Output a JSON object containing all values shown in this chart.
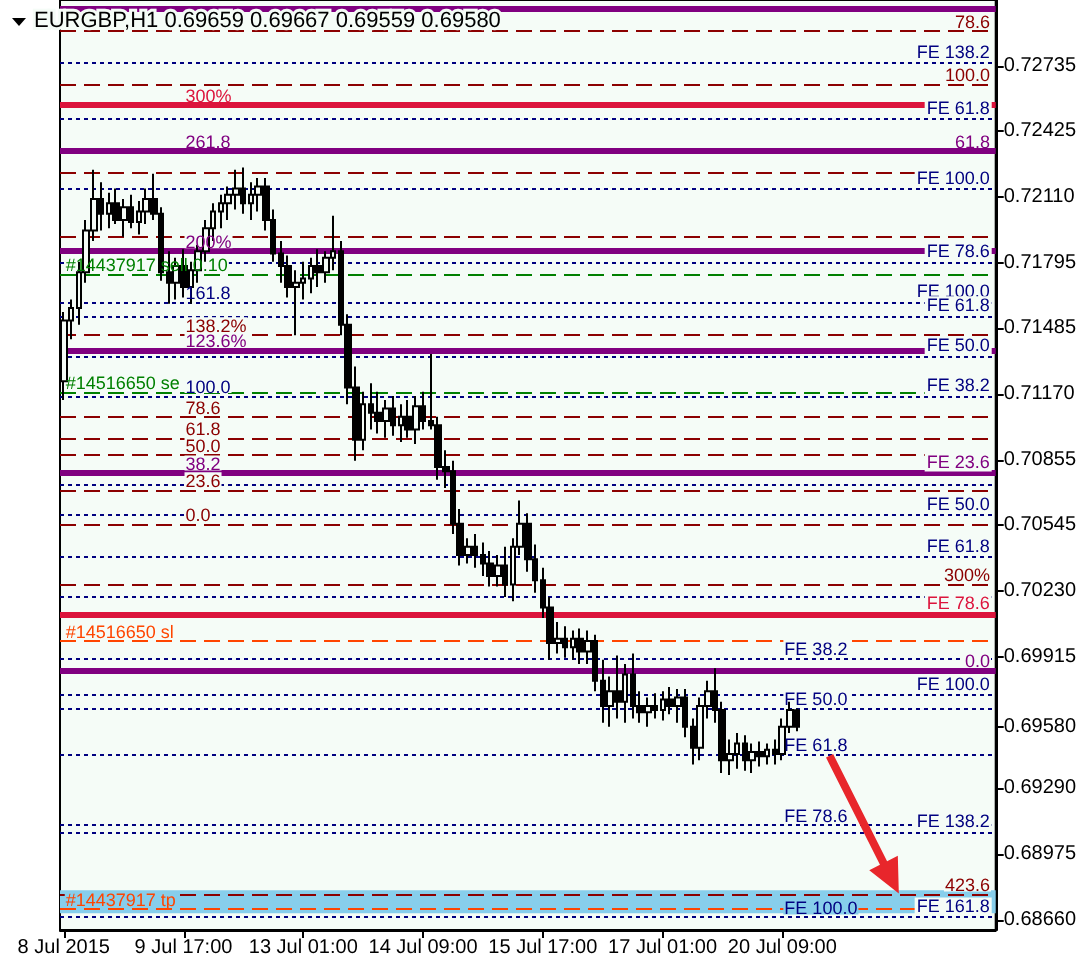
{
  "chart_data": {
    "type": "candlestick",
    "title": "EURGBP,H1 0.69659 0.69667 0.69559 0.69580",
    "color": "#000000",
    "categories": [
      "8 Jul 2015",
      null,
      null,
      null,
      null,
      null,
      null,
      null,
      null,
      null,
      null,
      null,
      null,
      null,
      null,
      null,
      "9 Jul 17:00",
      null,
      null,
      null,
      null,
      null,
      null,
      null,
      null,
      null,
      null,
      null,
      null,
      null,
      null,
      null,
      "13 Jul 01:00",
      null,
      null,
      null,
      null,
      null,
      null,
      null,
      null,
      null,
      null,
      null,
      null,
      null,
      null,
      null,
      "14 Jul 09:00",
      null,
      null,
      null,
      null,
      null,
      null,
      null,
      null,
      null,
      null,
      null,
      null,
      null,
      null,
      null,
      "15 Jul 17:00",
      null,
      null,
      null,
      null,
      null,
      null,
      null,
      null,
      null,
      null,
      null,
      null,
      null,
      null,
      null,
      "17 Jul 01:00",
      null,
      null,
      null,
      null,
      null,
      null,
      null,
      null,
      null,
      null,
      null,
      null,
      null,
      null,
      null,
      "20 Jul 09:00",
      null,
      null,
      null,
      null,
      null,
      null,
      null,
      null,
      null,
      null,
      null,
      null,
      null,
      null,
      null,
      null,
      null,
      null,
      null,
      null,
      null,
      null,
      null,
      null,
      null,
      null,
      null,
      null
    ],
    "ohlc": [
      [
        0.7123,
        0.7156,
        0.7114,
        0.7152
      ],
      [
        0.7152,
        0.7162,
        0.7143,
        0.7158
      ],
      [
        0.7158,
        0.718,
        0.715,
        0.7175
      ],
      [
        0.7175,
        0.72,
        0.717,
        0.7195
      ],
      [
        0.7195,
        0.7224,
        0.719,
        0.721
      ],
      [
        0.721,
        0.7218,
        0.7195,
        0.7203
      ],
      [
        0.7203,
        0.7213,
        0.7196,
        0.7208
      ],
      [
        0.7208,
        0.7215,
        0.7198,
        0.72
      ],
      [
        0.72,
        0.721,
        0.7192,
        0.7206
      ],
      [
        0.7206,
        0.7212,
        0.7196,
        0.7199
      ],
      [
        0.7199,
        0.7209,
        0.7193,
        0.7204
      ],
      [
        0.7204,
        0.7215,
        0.7198,
        0.721
      ],
      [
        0.721,
        0.7222,
        0.72,
        0.7203
      ],
      [
        0.7203,
        0.7206,
        0.7171,
        0.7175
      ],
      [
        0.7175,
        0.7185,
        0.716,
        0.717
      ],
      [
        0.717,
        0.7182,
        0.7162,
        0.7178
      ],
      [
        0.7178,
        0.7186,
        0.7163,
        0.7168
      ],
      [
        0.7168,
        0.718,
        0.716,
        0.7176
      ],
      [
        0.7176,
        0.7188,
        0.717,
        0.7185
      ],
      [
        0.7185,
        0.72,
        0.718,
        0.7196
      ],
      [
        0.7196,
        0.7208,
        0.719,
        0.7204
      ],
      [
        0.7204,
        0.7212,
        0.7196,
        0.7208
      ],
      [
        0.7208,
        0.7216,
        0.72,
        0.7212
      ],
      [
        0.7212,
        0.7224,
        0.7205,
        0.7215
      ],
      [
        0.7215,
        0.7225,
        0.7203,
        0.7208
      ],
      [
        0.7208,
        0.7218,
        0.72,
        0.7212
      ],
      [
        0.7212,
        0.722,
        0.7204,
        0.7216
      ],
      [
        0.7216,
        0.722,
        0.7195,
        0.72
      ],
      [
        0.72,
        0.7205,
        0.718,
        0.7184
      ],
      [
        0.7184,
        0.719,
        0.717,
        0.7178
      ],
      [
        0.7178,
        0.7183,
        0.7163,
        0.7168
      ],
      [
        0.7168,
        0.7176,
        0.7145,
        0.717
      ],
      [
        0.717,
        0.718,
        0.7162,
        0.7172
      ],
      [
        0.7172,
        0.7182,
        0.7165,
        0.7178
      ],
      [
        0.7178,
        0.7186,
        0.7168,
        0.7175
      ],
      [
        0.7175,
        0.7185,
        0.717,
        0.7182
      ],
      [
        0.7182,
        0.7202,
        0.7176,
        0.7185
      ],
      [
        0.7185,
        0.719,
        0.7145,
        0.715
      ],
      [
        0.715,
        0.7155,
        0.7112,
        0.712
      ],
      [
        0.712,
        0.713,
        0.7085,
        0.7095
      ],
      [
        0.7095,
        0.7118,
        0.709,
        0.7112
      ],
      [
        0.7112,
        0.7122,
        0.71,
        0.7108
      ],
      [
        0.7108,
        0.7118,
        0.7098,
        0.7104
      ],
      [
        0.7104,
        0.7114,
        0.7096,
        0.711
      ],
      [
        0.711,
        0.7116,
        0.7097,
        0.7102
      ],
      [
        0.7102,
        0.7112,
        0.7094,
        0.7106
      ],
      [
        0.7106,
        0.7114,
        0.7096,
        0.71
      ],
      [
        0.71,
        0.7116,
        0.7093,
        0.7111
      ],
      [
        0.7111,
        0.7118,
        0.71,
        0.7104
      ],
      [
        0.7104,
        0.7136,
        0.71,
        0.7102
      ],
      [
        0.7102,
        0.7106,
        0.7076,
        0.7082
      ],
      [
        0.7082,
        0.709,
        0.7072,
        0.708
      ],
      [
        0.708,
        0.7085,
        0.705,
        0.7055
      ],
      [
        0.7055,
        0.7062,
        0.7035,
        0.704
      ],
      [
        0.704,
        0.7048,
        0.7036,
        0.7044
      ],
      [
        0.7044,
        0.705,
        0.7034,
        0.704
      ],
      [
        0.704,
        0.7046,
        0.703,
        0.7036
      ],
      [
        0.7036,
        0.7042,
        0.7025,
        0.703
      ],
      [
        0.703,
        0.704,
        0.7025,
        0.7035
      ],
      [
        0.7035,
        0.7044,
        0.702,
        0.7026
      ],
      [
        0.7026,
        0.7048,
        0.7018,
        0.7044
      ],
      [
        0.7044,
        0.7066,
        0.704,
        0.7055
      ],
      [
        0.7055,
        0.706,
        0.7032,
        0.7038
      ],
      [
        0.7038,
        0.7045,
        0.7022,
        0.7028
      ],
      [
        0.7028,
        0.7034,
        0.701,
        0.7015
      ],
      [
        0.7015,
        0.702,
        0.699,
        0.6998
      ],
      [
        0.6998,
        0.7008,
        0.6993,
        0.7
      ],
      [
        0.7,
        0.7006,
        0.6991,
        0.6996
      ],
      [
        0.6996,
        0.7004,
        0.699,
        0.7
      ],
      [
        0.7,
        0.7005,
        0.6988,
        0.6994
      ],
      [
        0.6994,
        0.7004,
        0.6988,
        0.6999
      ],
      [
        0.6999,
        0.7002,
        0.6975,
        0.698
      ],
      [
        0.698,
        0.699,
        0.696,
        0.6968
      ],
      [
        0.6968,
        0.6982,
        0.6958,
        0.6975
      ],
      [
        0.6975,
        0.6992,
        0.6962,
        0.697
      ],
      [
        0.697,
        0.6988,
        0.696,
        0.6983
      ],
      [
        0.6983,
        0.6993,
        0.6962,
        0.6968
      ],
      [
        0.6968,
        0.6975,
        0.696,
        0.6965
      ],
      [
        0.6965,
        0.6972,
        0.6958,
        0.6968
      ],
      [
        0.6968,
        0.6974,
        0.6962,
        0.6966
      ],
      [
        0.6966,
        0.6975,
        0.6961,
        0.6971
      ],
      [
        0.6971,
        0.6977,
        0.6964,
        0.6968
      ],
      [
        0.6968,
        0.6976,
        0.696,
        0.6972
      ],
      [
        0.6972,
        0.6976,
        0.6953,
        0.6958
      ],
      [
        0.6958,
        0.6962,
        0.694,
        0.6948
      ],
      [
        0.6948,
        0.6972,
        0.6942,
        0.6968
      ],
      [
        0.6968,
        0.698,
        0.6962,
        0.6975
      ],
      [
        0.6975,
        0.6986,
        0.696,
        0.6966
      ],
      [
        0.6966,
        0.697,
        0.6936,
        0.6942
      ],
      [
        0.6942,
        0.6952,
        0.6935,
        0.6945
      ],
      [
        0.6945,
        0.6955,
        0.6938,
        0.695
      ],
      [
        0.695,
        0.6954,
        0.6937,
        0.6942
      ],
      [
        0.6942,
        0.695,
        0.6936,
        0.6946
      ],
      [
        0.6946,
        0.6951,
        0.6939,
        0.6944
      ],
      [
        0.6944,
        0.695,
        0.694,
        0.6947
      ],
      [
        0.6947,
        0.6952,
        0.694,
        0.6945
      ],
      [
        0.6945,
        0.6962,
        0.6942,
        0.6958
      ],
      [
        0.6958,
        0.697,
        0.6955,
        0.6966
      ],
      [
        0.69659,
        0.69667,
        0.69559,
        0.6958
      ],
      null,
      null,
      null,
      null,
      null,
      null,
      null,
      null,
      null,
      null,
      null,
      null,
      null,
      null,
      null,
      null,
      null,
      null,
      null,
      null,
      null,
      null,
      null,
      null,
      null,
      null
    ],
    "ylim": [
      0.6861,
      0.7305
    ],
    "yticks": [
      {
        "value": 0.6866,
        "label": "0.68660"
      },
      0.68975,
      {
        "value": 0.6929,
        "label": "0.69290"
      },
      {
        "value": 0.6958,
        "label": "0.69580"
      },
      0.69915,
      {
        "value": 0.7023,
        "label": "0.70230"
      },
      0.70545,
      0.70855,
      {
        "value": 0.7117,
        "label": "0.71170"
      },
      0.71485,
      0.71795,
      {
        "value": 0.7211,
        "label": "0.72110"
      },
      0.72425,
      0.72735
    ],
    "ref_lines": [
      {
        "axis": "y",
        "value": 0.7301,
        "color": "#800080",
        "line_style": "solid"
      },
      {
        "axis": "y",
        "value": 0.729,
        "color": "#8b0000",
        "line_style": "dashed"
      },
      {
        "axis": "y",
        "value": 0.7275,
        "label": "FE 138.2",
        "color": "#000080",
        "line_style": "dotted"
      },
      {
        "axis": "y",
        "value": 0.7265,
        "color": "#8b0000",
        "line_style": "dashed"
      },
      {
        "axis": "y",
        "value": 0.7255,
        "color": "#dc143c",
        "line_style": "solid"
      },
      {
        "axis": "y",
        "value": 0.7248,
        "label": "FE 61.8",
        "color": "#000080",
        "line_style": "dotted"
      },
      {
        "axis": "y",
        "value": 0.7233,
        "color": "#800080",
        "line_style": "solid"
      },
      {
        "axis": "y",
        "value": 0.7223,
        "color": "#8b0000",
        "line_style": "dashed"
      },
      {
        "axis": "y",
        "value": 0.7215,
        "label": "FE 100.0",
        "color": "#000080",
        "line_style": "dotted"
      },
      {
        "axis": "y",
        "value": 0.7192,
        "color": "#8b0000",
        "line_style": "dashed"
      },
      {
        "axis": "y",
        "value": 0.7185,
        "color": "#800080",
        "line_style": "solid"
      },
      {
        "axis": "y",
        "value": 0.718,
        "label": "FE 78.6",
        "color": "#000080",
        "line_style": "dotted"
      },
      {
        "axis": "y",
        "value": 0.7174,
        "color": "#008000",
        "line_style": "dashed"
      },
      {
        "axis": "y",
        "value": 0.7161,
        "label": "FE 100.0",
        "color": "#000080",
        "line_style": "dotted"
      },
      {
        "axis": "y",
        "value": 0.7154,
        "label": "FE 61.8",
        "color": "#000080",
        "line_style": "dotted"
      },
      {
        "axis": "y",
        "value": 0.7145,
        "color": "#8b0000",
        "line_style": "dashed"
      },
      {
        "axis": "y",
        "value": 0.7138,
        "color": "#800080",
        "line_style": "solid"
      },
      {
        "axis": "y",
        "value": 0.7135,
        "label": "FE 50.0",
        "color": "#000080",
        "line_style": "dotted"
      },
      {
        "axis": "y",
        "value": 0.7118,
        "color": "#008000",
        "line_style": "dashed"
      },
      {
        "axis": "y",
        "value": 0.7116,
        "label": "FE 38.2",
        "color": "#000080",
        "line_style": "dotted"
      },
      {
        "axis": "y",
        "value": 0.7106,
        "color": "#8b0000",
        "line_style": "dashed"
      },
      {
        "axis": "y",
        "value": 0.7096,
        "color": "#8b0000",
        "line_style": "dashed"
      },
      {
        "axis": "y",
        "value": 0.7088,
        "color": "#8b0000",
        "line_style": "dashed"
      },
      {
        "axis": "y",
        "value": 0.7079,
        "label": "FE 23.6",
        "color": "#800080",
        "line_style": "solid"
      },
      {
        "axis": "y",
        "value": 0.7074,
        "color": "#000080",
        "line_style": "dotted"
      },
      {
        "axis": "y",
        "value": 0.7071,
        "color": "#8b0000",
        "line_style": "dashed"
      },
      {
        "axis": "y",
        "value": 0.7059,
        "label": "FE 50.0",
        "color": "#000080",
        "line_style": "dotted"
      },
      {
        "axis": "y",
        "value": 0.7055,
        "color": "#8b0000",
        "line_style": "dashed"
      },
      {
        "axis": "y",
        "value": 0.7039,
        "label": "FE 61.8",
        "color": "#000080",
        "line_style": "dotted"
      },
      {
        "axis": "y",
        "value": 0.7026,
        "color": "#8b0000",
        "line_style": "dashed"
      },
      {
        "axis": "y",
        "value": 0.702,
        "color": "#000080",
        "line_style": "dotted"
      },
      {
        "axis": "y",
        "value": 0.7012,
        "label": "FE 78.6",
        "color": "#dc143c",
        "line_style": "solid"
      },
      {
        "axis": "y",
        "value": 0.6999,
        "color": "#ff4500",
        "line_style": "dashed"
      },
      {
        "axis": "y",
        "value": 0.6991,
        "color": "#000080",
        "line_style": "dotted"
      },
      {
        "axis": "y",
        "value": 0.6985,
        "color": "#800080",
        "line_style": "solid"
      },
      {
        "axis": "y",
        "value": 0.6973,
        "label": "FE 100.0",
        "color": "#000080",
        "line_style": "dotted"
      },
      {
        "axis": "y",
        "value": 0.6967,
        "color": "#000080",
        "line_style": "dotted"
      },
      {
        "axis": "y",
        "value": 0.6945,
        "color": "#000080",
        "line_style": "dotted"
      },
      {
        "axis": "y",
        "value": 0.6911,
        "color": "#000080",
        "line_style": "dotted"
      },
      {
        "axis": "y",
        "value": 0.6908,
        "label": "FE 138.2",
        "color": "#000080",
        "line_style": "dotted"
      },
      {
        "axis": "y",
        "value": 0.6878,
        "color": "#8b0000",
        "line_style": "dashed"
      },
      {
        "axis": "y",
        "value": 0.6871,
        "color": "#ff4500",
        "line_style": "dashed"
      },
      {
        "axis": "y",
        "value": 0.6867,
        "label": "FE 161.8",
        "color": "#000080",
        "line_style": "dotted"
      }
    ],
    "bands": [
      {
        "axis": "y",
        "from": 0.6869,
        "to": 0.688,
        "color": "#87ceeb"
      }
    ],
    "annotations": [
      {
        "text": "78.6",
        "y": 0.729
      },
      {
        "text": "100.0",
        "y": 0.7265
      },
      {
        "text": "300%",
        "x": "9 Jul 17:00",
        "y": 0.7255
      },
      {
        "text": "261.8",
        "x": "9 Jul 17:00",
        "y": 0.7233
      },
      {
        "text": "61.8",
        "y": 0.7233
      },
      {
        "text": "200%",
        "x": "9 Jul 17:00",
        "y": 0.7185
      },
      {
        "text": "#14437917 sell 0.10",
        "x": "8 Jul 2015",
        "y": 0.7174
      },
      {
        "text": "161.8",
        "x": "9 Jul 17:00",
        "y": 0.7161
      },
      {
        "text": "138.2%",
        "x": "9 Jul 17:00",
        "y": 0.7145
      },
      {
        "text": "123.6%",
        "x": "9 Jul 17:00",
        "y": 0.7138
      },
      {
        "text": "#14516650 se",
        "x": "8 Jul 2015",
        "y": 0.7118
      },
      {
        "text": "100.0",
        "x": "9 Jul 17:00",
        "y": 0.7116
      },
      {
        "text": "78.6",
        "x": "9 Jul 17:00",
        "y": 0.7106
      },
      {
        "text": "61.8",
        "x": "9 Jul 17:00",
        "y": 0.7096
      },
      {
        "text": "50.0",
        "x": "9 Jul 17:00",
        "y": 0.7088
      },
      {
        "text": "38.2",
        "x": "9 Jul 17:00",
        "y": 0.7079
      },
      {
        "text": "23.6",
        "x": "9 Jul 17:00",
        "y": 0.7071
      },
      {
        "text": "0.0",
        "x": "9 Jul 17:00",
        "y": 0.7055
      },
      {
        "text": "300%",
        "y": 0.7026
      },
      {
        "text": "#14516650 sl",
        "x": "8 Jul 2015",
        "y": 0.6999
      },
      {
        "text": "FE 38.2",
        "x": "20 Jul 09:00",
        "y": 0.6991
      },
      {
        "text": "0.0",
        "y": 0.6985
      },
      {
        "text": "FE 50.0",
        "x": "20 Jul 09:00",
        "y": 0.6967
      },
      {
        "text": "FE 61.8",
        "x": "20 Jul 09:00",
        "y": 0.6945
      },
      {
        "text": "FE 78.6",
        "x": "20 Jul 09:00",
        "y": 0.6911
      },
      {
        "text": "423.6",
        "y": 0.6878
      },
      {
        "text": "#14437917 tp",
        "x": "8 Jul 2015",
        "y": 0.6871
      },
      {
        "text": "FE 100.0",
        "x": "20 Jul 09:00",
        "y": 0.6867
      }
    ]
  }
}
